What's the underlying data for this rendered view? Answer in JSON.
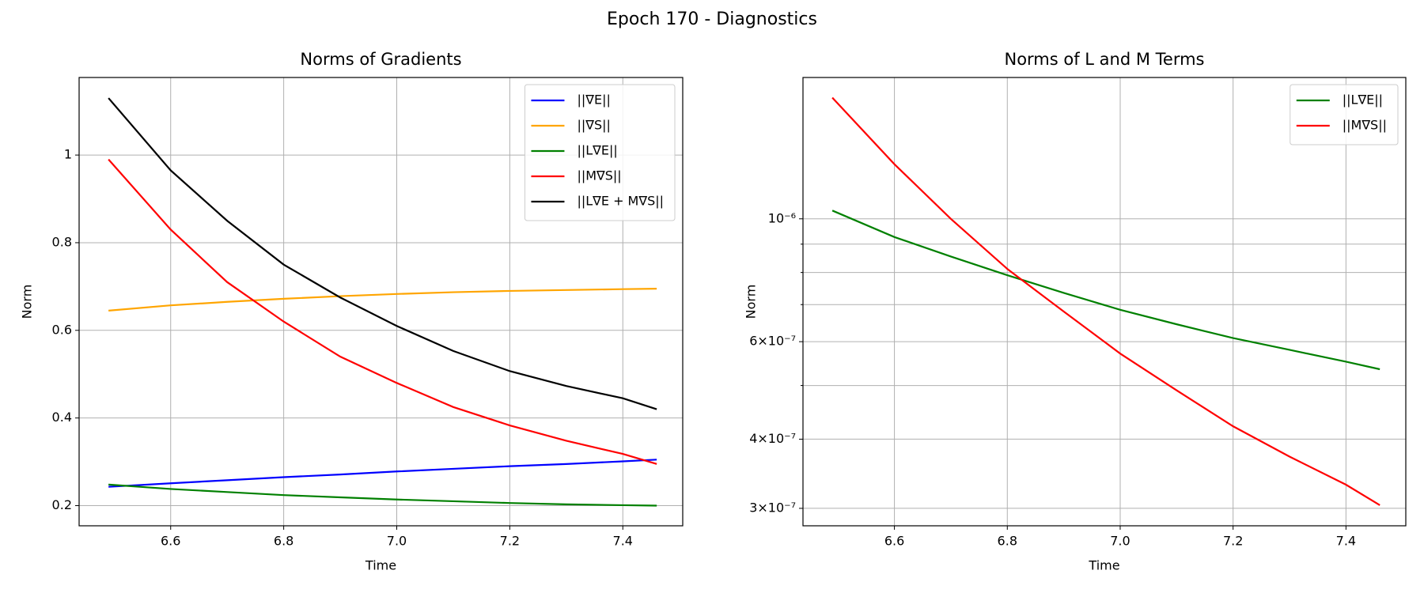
{
  "title": "Epoch 170 - Diagnostics",
  "chart_data": [
    {
      "type": "line",
      "title": "Norms of Gradients",
      "x_label": "Time",
      "y_label": "Norm",
      "x": [
        6.49,
        6.6,
        6.7,
        6.8,
        6.9,
        7.0,
        7.1,
        7.2,
        7.3,
        7.4,
        7.46
      ],
      "series": [
        {
          "name": "||∇E||",
          "color": "#0000ff",
          "values": [
            0.243,
            0.251,
            0.258,
            0.265,
            0.271,
            0.278,
            0.284,
            0.29,
            0.295,
            0.301,
            0.305
          ]
        },
        {
          "name": "||∇S||",
          "color": "#ffa500",
          "values": [
            0.645,
            0.657,
            0.665,
            0.672,
            0.678,
            0.683,
            0.687,
            0.69,
            0.692,
            0.694,
            0.695
          ]
        },
        {
          "name": "||L∇E||",
          "color": "#008000",
          "values": [
            0.248,
            0.238,
            0.231,
            0.224,
            0.219,
            0.214,
            0.21,
            0.206,
            0.203,
            0.201,
            0.2
          ]
        },
        {
          "name": "||M∇S||",
          "color": "#ff0000",
          "values": [
            0.99,
            0.83,
            0.71,
            0.62,
            0.54,
            0.48,
            0.425,
            0.383,
            0.348,
            0.318,
            0.295
          ]
        },
        {
          "name": "||L∇E + M∇S||",
          "color": "#000000",
          "values": [
            1.13,
            0.965,
            0.85,
            0.75,
            0.675,
            0.61,
            0.553,
            0.507,
            0.473,
            0.445,
            0.42
          ]
        }
      ],
      "xlim": [
        6.438,
        7.506
      ],
      "xticks": [
        6.6,
        6.8,
        7.0,
        7.2,
        7.4
      ],
      "ylim": [
        0.154,
        1.177
      ],
      "yticks": [
        0.2,
        0.4,
        0.6,
        0.8,
        1.0
      ],
      "xticks_labels": [
        "6.6",
        "6.8",
        "7.0",
        "7.2",
        "7.4"
      ],
      "grid": true,
      "log_y": false,
      "legend": "upper right"
    },
    {
      "type": "line",
      "title": "Norms of L and M Terms",
      "x_label": "Time",
      "y_label": "Norm",
      "x": [
        6.49,
        6.6,
        6.7,
        6.8,
        6.9,
        7.0,
        7.1,
        7.2,
        7.3,
        7.4,
        7.46
      ],
      "series": [
        {
          "name": "||L∇E||",
          "color": "#008000",
          "values": [
            1.035e-06,
            9.27e-07,
            8.55e-07,
            7.91e-07,
            7.35e-07,
            6.85e-07,
            6.45e-07,
            6.09e-07,
            5.8e-07,
            5.52e-07,
            5.35e-07
          ]
        },
        {
          "name": "||M∇S||",
          "color": "#ff0000",
          "values": [
            1.655e-06,
            1.255e-06,
            1e-06,
            8.12e-07,
            6.8e-07,
            5.71e-07,
            4.9e-07,
            4.22e-07,
            3.72e-07,
            3.31e-07,
            3.04e-07
          ]
        }
      ],
      "xlim": [
        6.438,
        7.506
      ],
      "xticks": [
        6.6,
        6.8,
        7.0,
        7.2,
        7.4
      ],
      "xticks_labels": [
        "6.6",
        "6.8",
        "7.0",
        "7.2",
        "7.4"
      ],
      "ylim": [
        2.79e-07,
        1.8e-06
      ],
      "yticks": [
        {
          "value": 1e-06,
          "label": "10⁻⁶"
        },
        {
          "value": 6e-07,
          "label": "6×10⁻⁷"
        },
        {
          "value": 4e-07,
          "label": "4×10⁻⁷"
        },
        {
          "value": 3e-07,
          "label": "3×10⁻⁷"
        }
      ],
      "minor_yticks": [
        5e-07,
        7e-07,
        8e-07,
        9e-07
      ],
      "grid": true,
      "log_y": true,
      "legend": "upper right"
    }
  ]
}
